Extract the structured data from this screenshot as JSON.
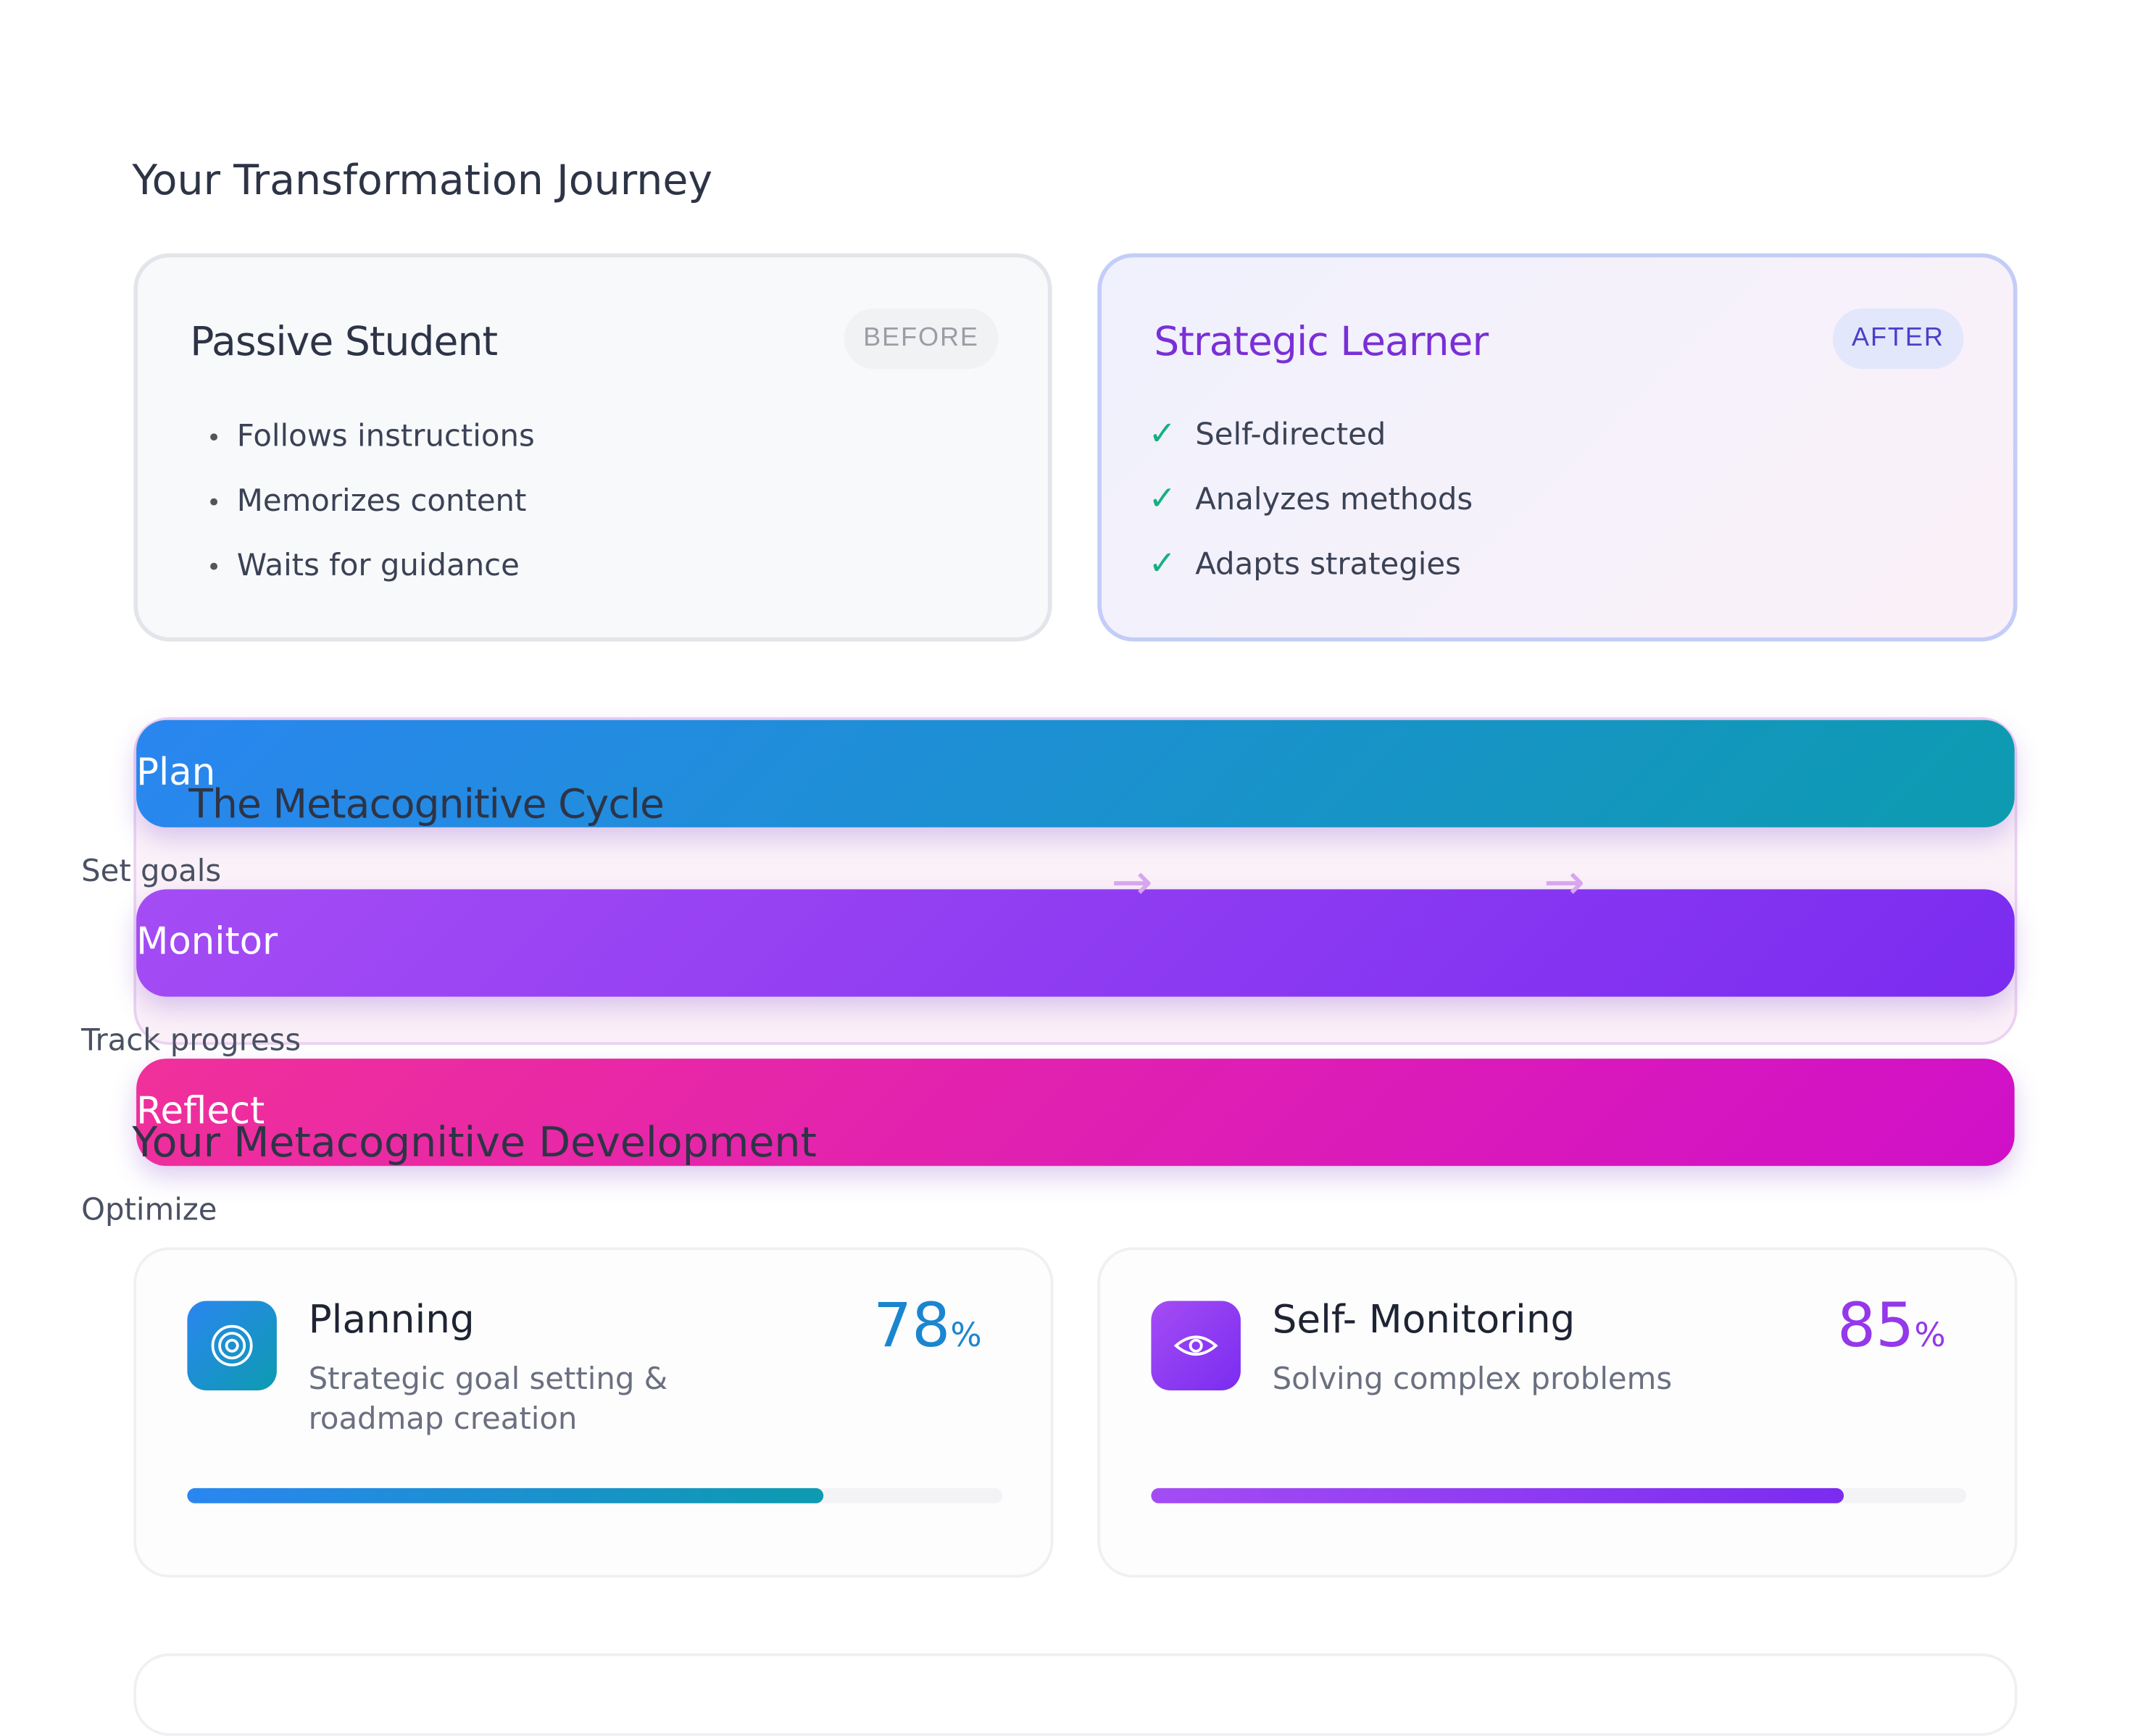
{
  "journey": {
    "title": "Your Transformation Journey",
    "before": {
      "title": "Passive Student",
      "badge": "BEFORE",
      "items": [
        "Follows instructions",
        "Memorizes content",
        "Waits for guidance"
      ]
    },
    "after": {
      "title": "Strategic Learner",
      "badge": "AFTER",
      "items": [
        "Self-directed",
        "Analyzes methods",
        "Adapts strategies"
      ]
    }
  },
  "cycle": {
    "title": "The Metacognitive Cycle",
    "steps": [
      {
        "label": "Plan",
        "caption": "Set goals"
      },
      {
        "label": "Monitor",
        "caption": "Track progress"
      },
      {
        "label": "Reflect",
        "caption": "Optimize"
      }
    ]
  },
  "development": {
    "title": "Your Metacognitive Development",
    "metrics": [
      {
        "name": "Planning",
        "description": "Strategic goal setting & roadmap creation",
        "value": 78,
        "unit": "%"
      },
      {
        "name": "Self- Monitoring",
        "description": "Solving complex problems",
        "value": 85,
        "unit": "%"
      }
    ]
  }
}
